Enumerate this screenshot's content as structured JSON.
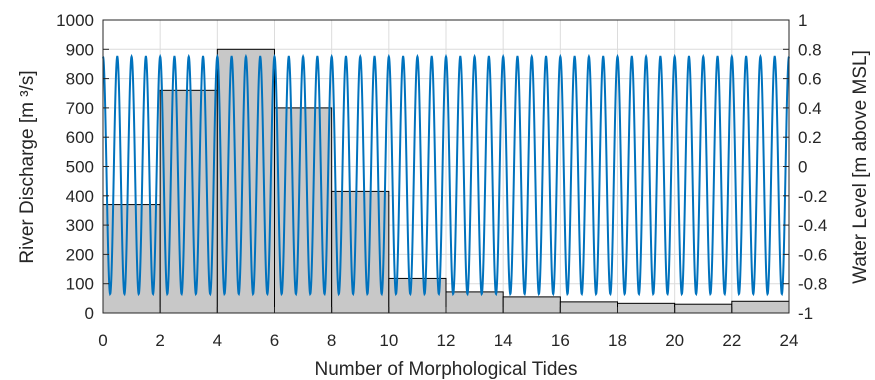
{
  "chart_data": {
    "type": "bar+line",
    "title": "",
    "xlabel": "Number of Morphological Tides",
    "ylabel_left": "River Discharge [m ³/s]",
    "ylabel_right": "Water Level [m above MSL]",
    "xlim": [
      0,
      24
    ],
    "ylim_left": [
      0,
      1000
    ],
    "ylim_right": [
      -1,
      1
    ],
    "x_ticks": [
      0,
      2,
      4,
      6,
      8,
      10,
      12,
      14,
      16,
      18,
      20,
      22,
      24
    ],
    "y_left_ticks": [
      0,
      100,
      200,
      300,
      400,
      500,
      600,
      700,
      800,
      900,
      1000
    ],
    "y_right_ticks": [
      -1,
      -0.8,
      -0.6,
      -0.4,
      -0.2,
      0,
      0.2,
      0.4,
      0.6,
      0.8,
      1
    ],
    "grid": true,
    "bars": {
      "name": "River Discharge",
      "color": "#c8c8c8",
      "x_start": [
        0,
        2,
        4,
        6,
        8,
        10,
        12,
        14,
        16,
        18,
        20,
        22
      ],
      "x_end": [
        2,
        4,
        6,
        8,
        10,
        12,
        14,
        16,
        18,
        20,
        22,
        24
      ],
      "values": [
        370,
        760,
        900,
        700,
        415,
        118,
        72,
        55,
        38,
        33,
        30,
        40
      ]
    },
    "wave": {
      "name": "Water Level",
      "color": "#0072bd",
      "cycles": 48,
      "x_range": [
        0,
        24
      ],
      "mean": -0.06,
      "amplitude": 0.81,
      "phase_start": "max"
    }
  }
}
